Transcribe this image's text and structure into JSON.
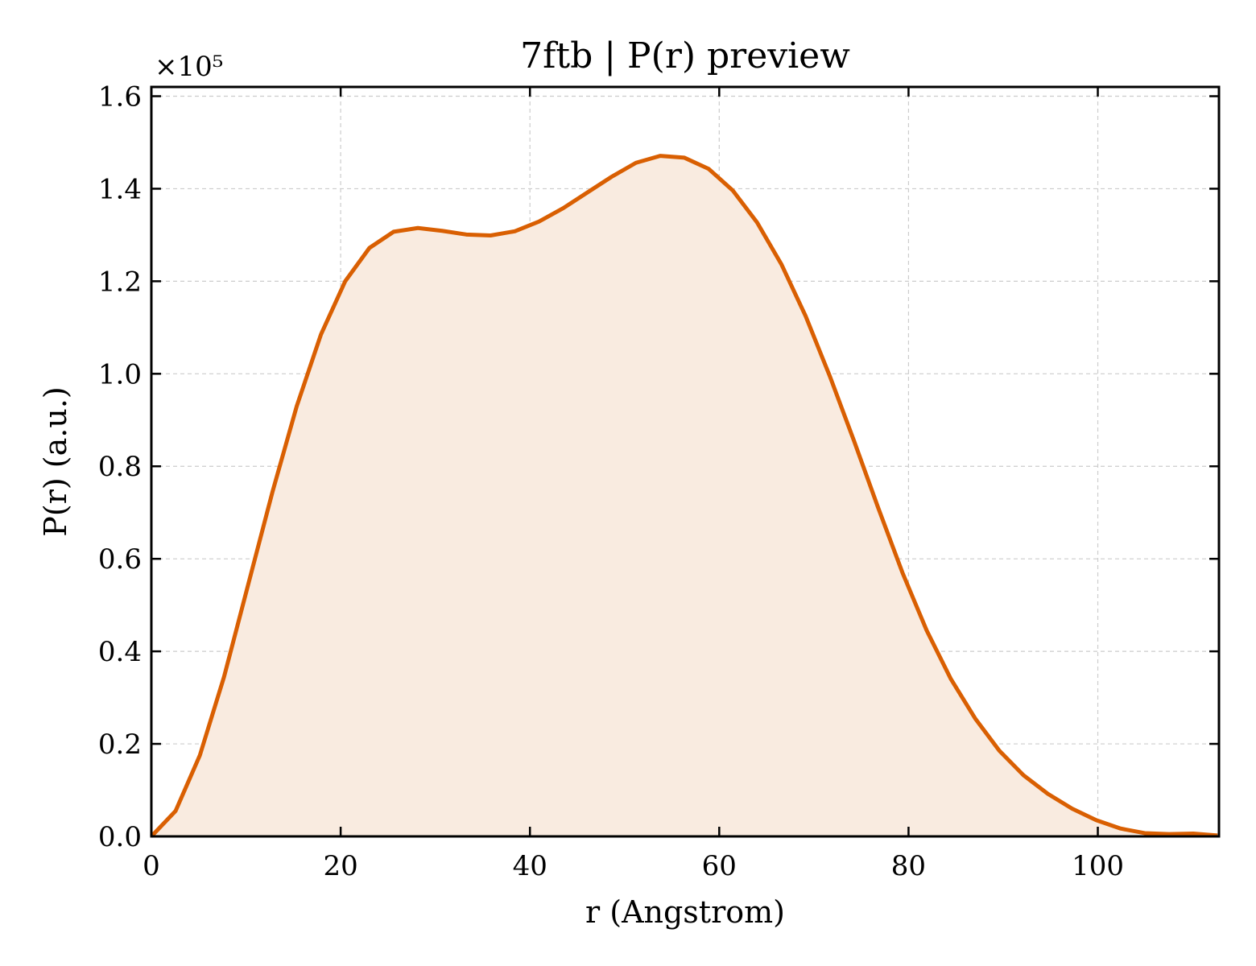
{
  "chart_data": {
    "type": "area",
    "title": "7ftb | P(r) preview",
    "xlabel": "r (Angstrom)",
    "ylabel": "P(r) (a.u.)",
    "y_offset_label": "×10⁵",
    "y_scale": 100000,
    "xlim": [
      0,
      112.8
    ],
    "ylim": [
      0,
      1.62
    ],
    "xticks": [
      0,
      20,
      40,
      60,
      80,
      100
    ],
    "xtick_labels": [
      "0",
      "20",
      "40",
      "60",
      "80",
      "100"
    ],
    "yticks": [
      0.0,
      0.2,
      0.4,
      0.6,
      0.8,
      1.0,
      1.2,
      1.4,
      1.6
    ],
    "ytick_labels": [
      "0.0",
      "0.2",
      "0.4",
      "0.6",
      "0.8",
      "1.0",
      "1.2",
      "1.4",
      "1.6"
    ],
    "grid": true,
    "line_color": "#d95f02",
    "fill_color": "#f9ebe0",
    "series": [
      {
        "x": [
          0,
          2.56,
          5.12,
          7.68,
          10.24,
          12.8,
          15.36,
          17.92,
          20.48,
          23.04,
          25.6,
          28.16,
          30.72,
          33.28,
          35.84,
          38.4,
          40.96,
          43.52,
          46.08,
          48.64,
          51.2,
          53.76,
          56.32,
          58.88,
          61.44,
          64.0,
          66.56,
          69.12,
          71.68,
          74.24,
          76.8,
          79.36,
          81.92,
          84.48,
          87.04,
          89.6,
          92.16,
          94.72,
          97.28,
          99.84,
          102.4,
          104.96,
          107.52,
          110.08,
          112.64
        ],
        "values": [
          0.0,
          0.055,
          0.175,
          0.345,
          0.545,
          0.745,
          0.93,
          1.085,
          1.2,
          1.272,
          1.307,
          1.315,
          1.309,
          1.301,
          1.299,
          1.308,
          1.329,
          1.358,
          1.392,
          1.426,
          1.456,
          1.471,
          1.467,
          1.443,
          1.396,
          1.327,
          1.237,
          1.125,
          0.995,
          0.855,
          0.71,
          0.57,
          0.445,
          0.34,
          0.255,
          0.185,
          0.132,
          0.092,
          0.06,
          0.035,
          0.017,
          0.007,
          0.005,
          0.006,
          0.002
        ]
      }
    ]
  }
}
